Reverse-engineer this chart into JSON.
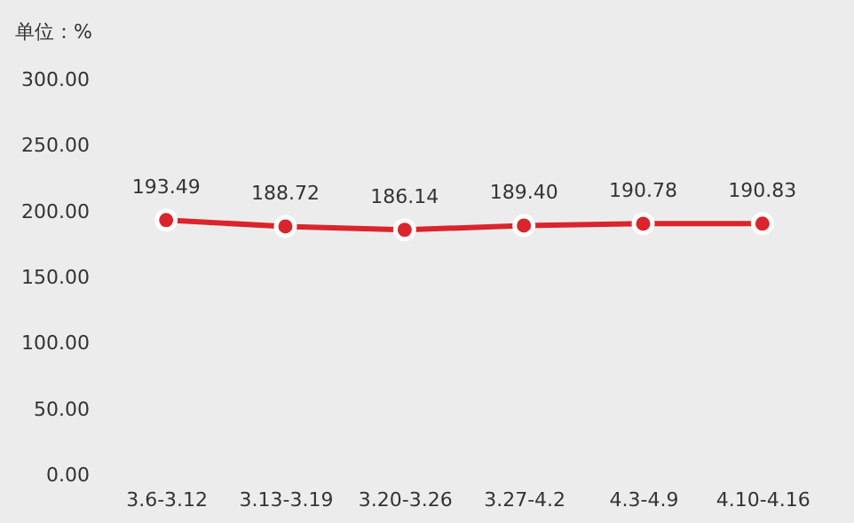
{
  "chart_data": {
    "type": "line",
    "ylabel": "单位：%",
    "categories": [
      "3.6-3.12",
      "3.13-3.19",
      "3.20-3.26",
      "3.27-4.2",
      "4.3-4.9",
      "4.10-4.16"
    ],
    "series": [
      {
        "color": "#d9252b",
        "values": [
          193.49,
          188.72,
          186.14,
          189.4,
          190.78,
          190.83
        ]
      }
    ],
    "value_labels": [
      "193.49",
      "188.72",
      "186.14",
      "189.40",
      "190.78",
      "190.83"
    ],
    "ylim": [
      0,
      300
    ],
    "yticks": [
      {
        "value": 0,
        "label": "0.00"
      },
      {
        "value": 50,
        "label": "50.00"
      },
      {
        "value": 100,
        "label": "100.00"
      },
      {
        "value": 150,
        "label": "150.00"
      },
      {
        "value": 200,
        "label": "200.00"
      },
      {
        "value": 250,
        "label": "250.00"
      },
      {
        "value": 300,
        "label": "300.00"
      }
    ],
    "grid": false,
    "marker": "circle",
    "line_style": "solid"
  }
}
